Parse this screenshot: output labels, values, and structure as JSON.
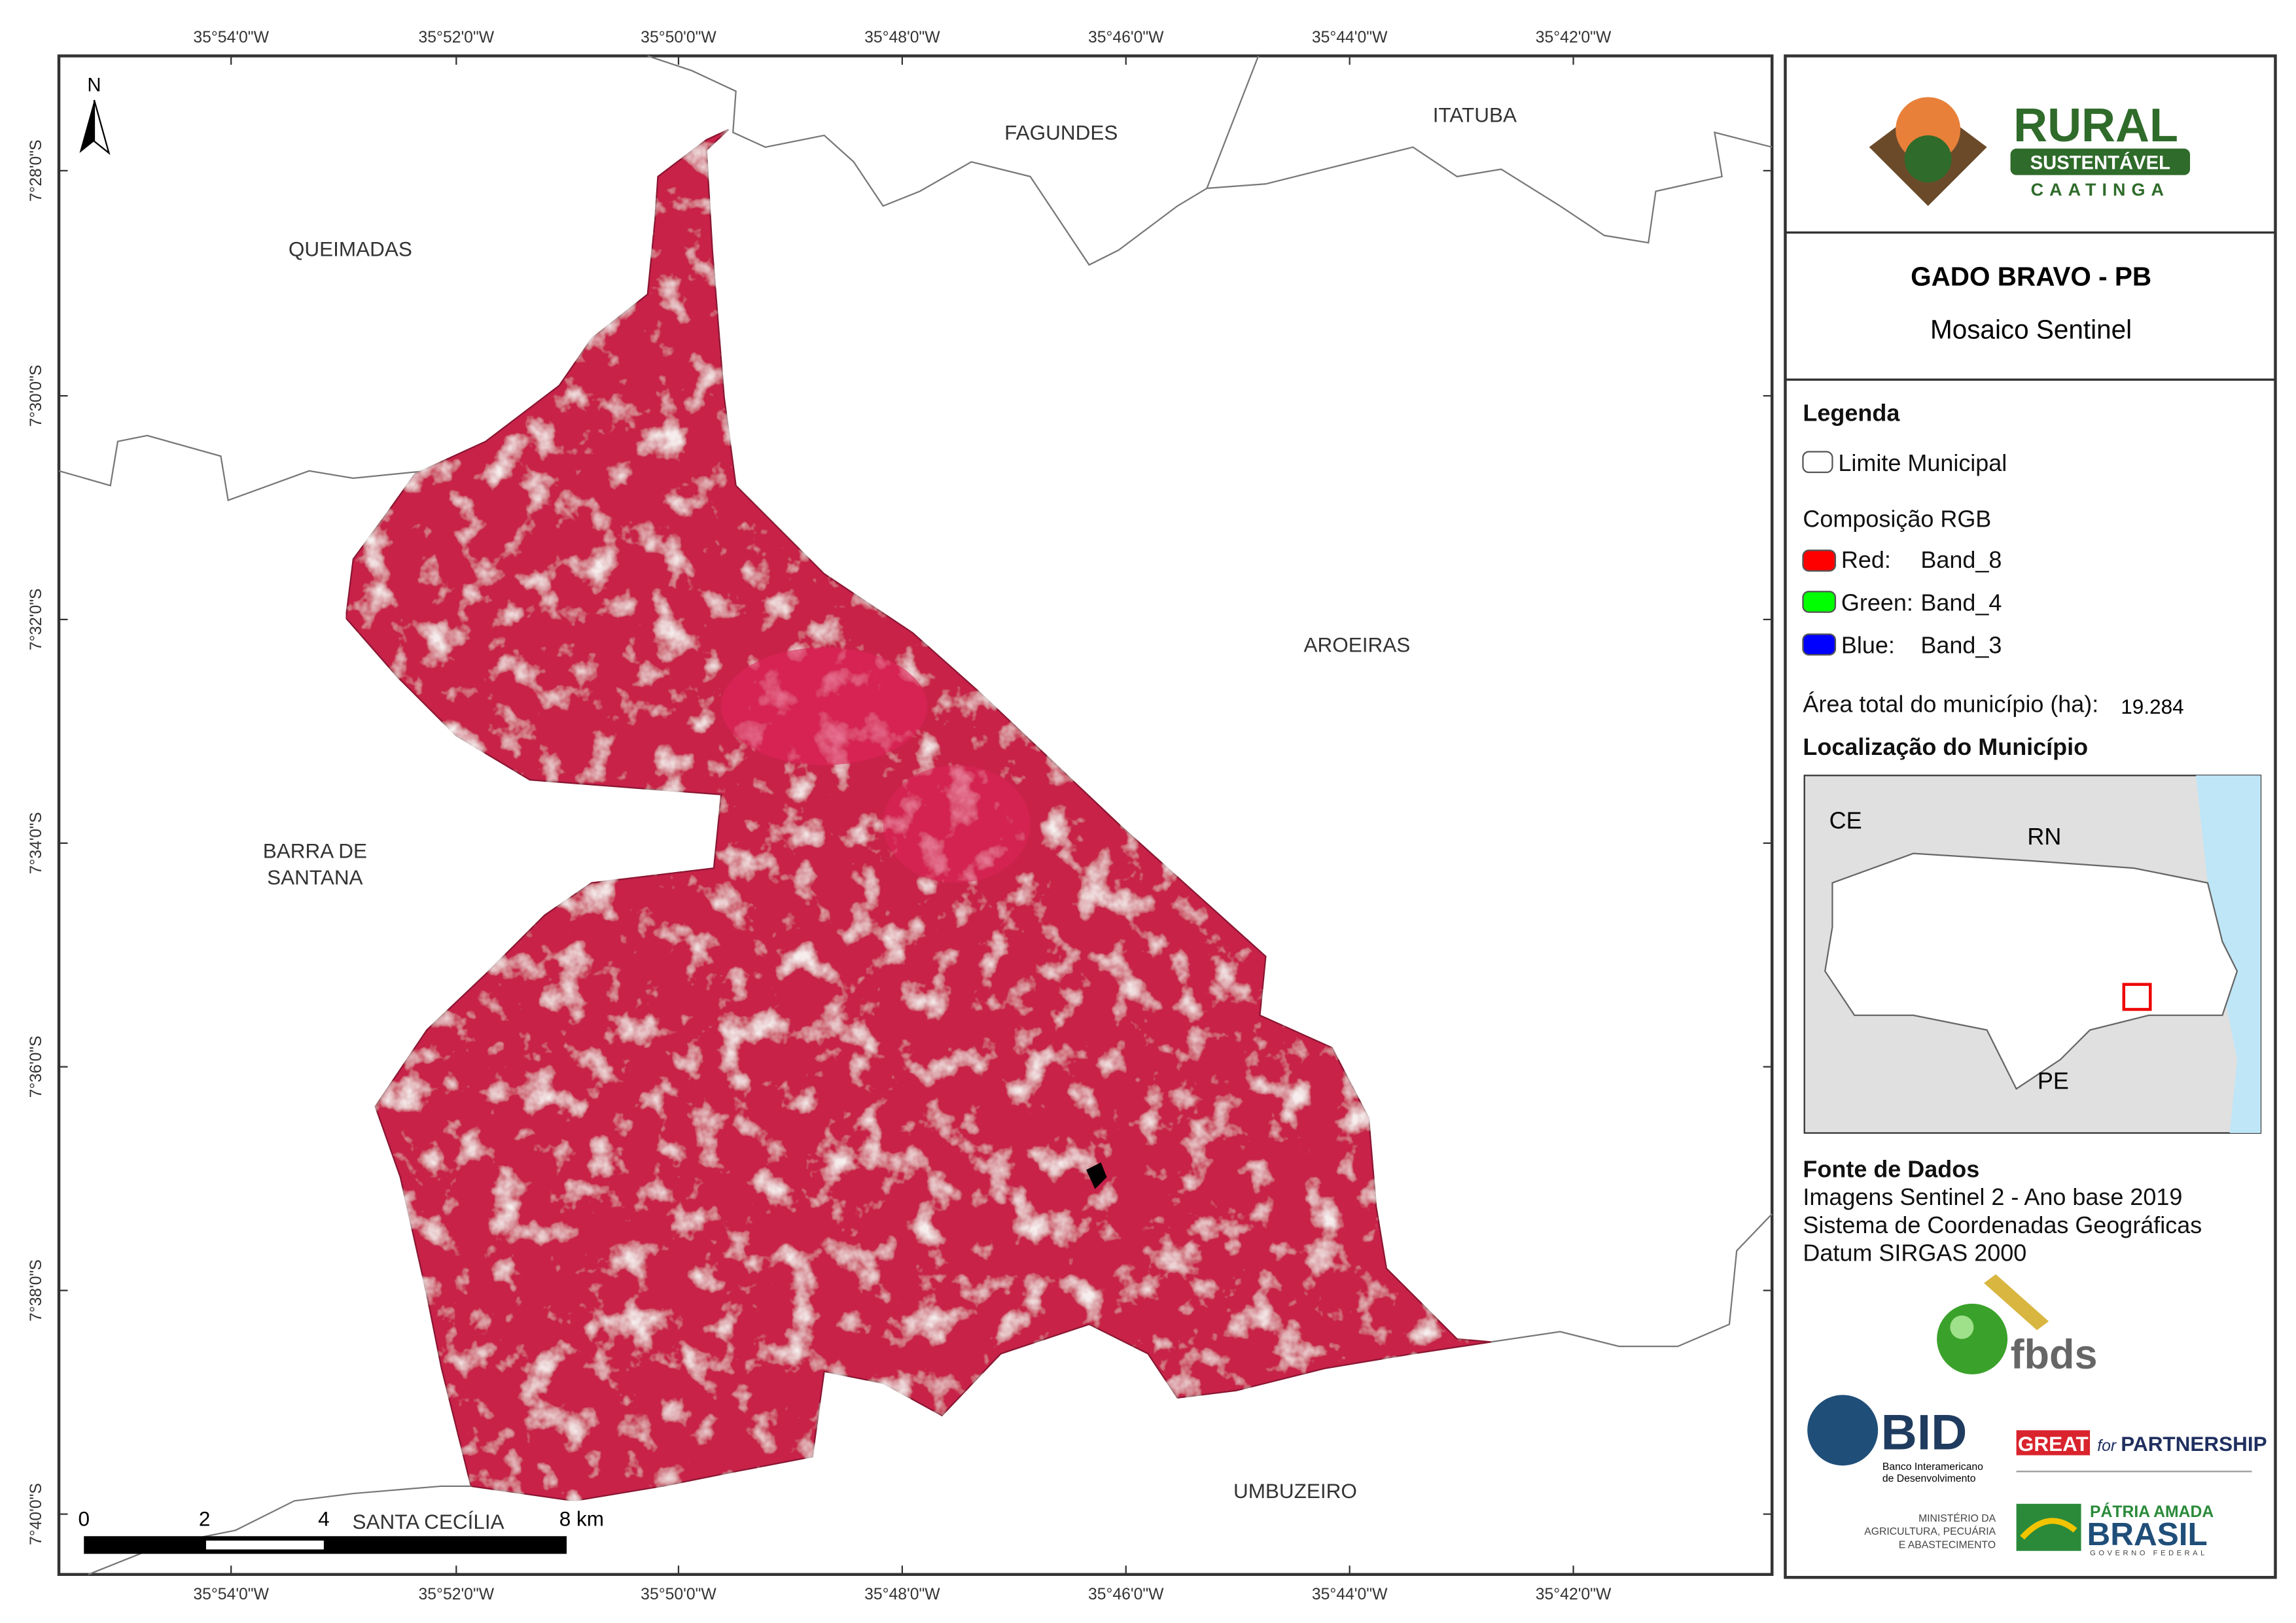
{
  "map": {
    "lon_labels": [
      "35°54'0\"W",
      "35°52'0\"W",
      "35°50'0\"W",
      "35°48'0\"W",
      "35°46'0\"W",
      "35°44'0\"W",
      "35°42'0\"W"
    ],
    "lat_labels": [
      "7°28'0\"S",
      "7°30'0\"S",
      "7°32'0\"S",
      "7°34'0\"S",
      "7°36'0\"S",
      "7°38'0\"S",
      "7°40'0\"S"
    ],
    "north": "N",
    "places": {
      "fagundes": "FAGUNDES",
      "itatuba": "ITATUBA",
      "queimadas": "QUEIMADAS",
      "aroeiras": "AROEIRAS",
      "barra_de_santana": [
        "BARRA DE",
        "SANTANA"
      ],
      "umbuzeiro": "UMBUZEIRO",
      "santa_cecilia": "SANTA CECÍLIA"
    },
    "scale_bar": [
      "0",
      "2",
      "4",
      "8 km"
    ]
  },
  "panel": {
    "logo": {
      "line1": "RURAL",
      "line2": "SUSTENTÁVEL",
      "line3": "CAATINGA"
    },
    "title": "GADO BRAVO - PB",
    "subtitle": "Mosaico Sentinel",
    "legend": {
      "heading": "Legenda",
      "boundary": "Limite Municipal",
      "rgb_heading": "Composição RGB",
      "bands": [
        {
          "channel": "Red:",
          "band": "Band_8"
        },
        {
          "channel": "Green:",
          "band": "Band_4"
        },
        {
          "channel": "Blue:",
          "band": "Band_3"
        }
      ],
      "area_label": "Área total do município (ha):",
      "area_value": "19.284"
    },
    "location": {
      "heading": "Localização do Município",
      "labels": [
        "CE",
        "RN",
        "PE"
      ]
    },
    "sources": {
      "heading": "Fonte de Dados",
      "lines": [
        "Imagens Sentinel 2 - Ano base 2019",
        "Sistema de Coordenadas Geográficas",
        "Datum SIRGAS 2000"
      ]
    },
    "partners": {
      "fbds": "fbds",
      "bid": "BID",
      "bid_name": [
        "Banco Interamericano",
        "de Desenvolvimento"
      ],
      "great": "GREAT",
      "great_for": "for",
      "partnership": "PARTNERSHIP",
      "ministry": [
        "MINISTÉRIO DA",
        "AGRICULTURA, PECUÁRIA",
        "E ABASTECIMENTO"
      ],
      "brasil_top": "PÁTRIA AMADA",
      "brasil": "BRASIL",
      "brasil_bottom": "GOVERNO FEDERAL"
    }
  }
}
